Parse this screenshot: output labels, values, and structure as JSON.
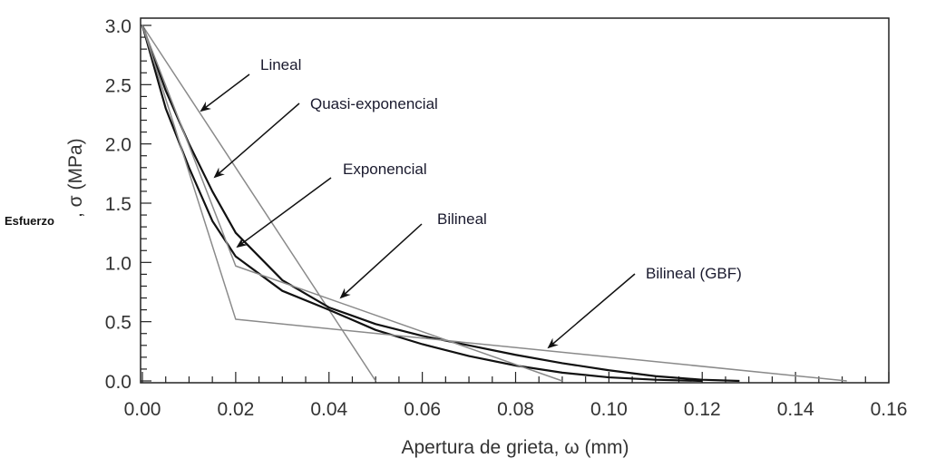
{
  "chart_data": {
    "type": "line",
    "title": "",
    "xlabel": "Apertura de grieta, ω (mm)",
    "ylabel_prefix": "Esfuerzo",
    "ylabel": ", σ (MPa)",
    "xlim": [
      0,
      0.16
    ],
    "ylim": [
      0,
      3.0
    ],
    "xticks": [
      "0.00",
      "0.02",
      "0.04",
      "0.06",
      "0.08",
      "0.10",
      "0.12",
      "0.14",
      "0.16"
    ],
    "yticks": [
      "0.0",
      "0.5",
      "1.0",
      "1.5",
      "2.0",
      "2.5",
      "3.0"
    ],
    "grid": false,
    "series": [
      {
        "name": "Lineal",
        "color": "#8a8a8a",
        "points": [
          [
            0,
            3.0
          ],
          [
            0.05,
            0
          ]
        ]
      },
      {
        "name": "Quasi-exponencial",
        "color": "#111111",
        "points": [
          [
            0,
            3.0
          ],
          [
            0.005,
            2.45
          ],
          [
            0.01,
            2.0
          ],
          [
            0.015,
            1.6
          ],
          [
            0.02,
            1.25
          ],
          [
            0.03,
            0.85
          ],
          [
            0.04,
            0.62
          ],
          [
            0.05,
            0.48
          ],
          [
            0.06,
            0.38
          ],
          [
            0.07,
            0.3
          ],
          [
            0.08,
            0.22
          ],
          [
            0.09,
            0.15
          ],
          [
            0.1,
            0.09
          ],
          [
            0.11,
            0.04
          ],
          [
            0.12,
            0.01
          ],
          [
            0.128,
            0
          ]
        ]
      },
      {
        "name": "Exponencial",
        "color": "#111111",
        "points": [
          [
            0,
            3.0
          ],
          [
            0.005,
            2.3
          ],
          [
            0.01,
            1.8
          ],
          [
            0.015,
            1.35
          ],
          [
            0.02,
            1.05
          ],
          [
            0.03,
            0.76
          ],
          [
            0.04,
            0.6
          ],
          [
            0.05,
            0.43
          ],
          [
            0.06,
            0.31
          ],
          [
            0.07,
            0.21
          ],
          [
            0.08,
            0.13
          ],
          [
            0.09,
            0.07
          ],
          [
            0.1,
            0.03
          ],
          [
            0.11,
            0.01
          ],
          [
            0.12,
            0
          ]
        ]
      },
      {
        "name": "Bilineal",
        "color": "#8a8a8a",
        "points": [
          [
            0,
            3.0
          ],
          [
            0.02,
            0.97
          ],
          [
            0.09,
            0
          ]
        ]
      },
      {
        "name": "Bilineal (GBF)",
        "color": "#8a8a8a",
        "points": [
          [
            0,
            3.0
          ],
          [
            0.02,
            0.52
          ],
          [
            0.151,
            0
          ]
        ]
      }
    ],
    "annotations": [
      "Lineal",
      "Quasi-exponencial",
      "Exponencial",
      "Bilineal",
      "Bilineal (GBF)"
    ]
  }
}
